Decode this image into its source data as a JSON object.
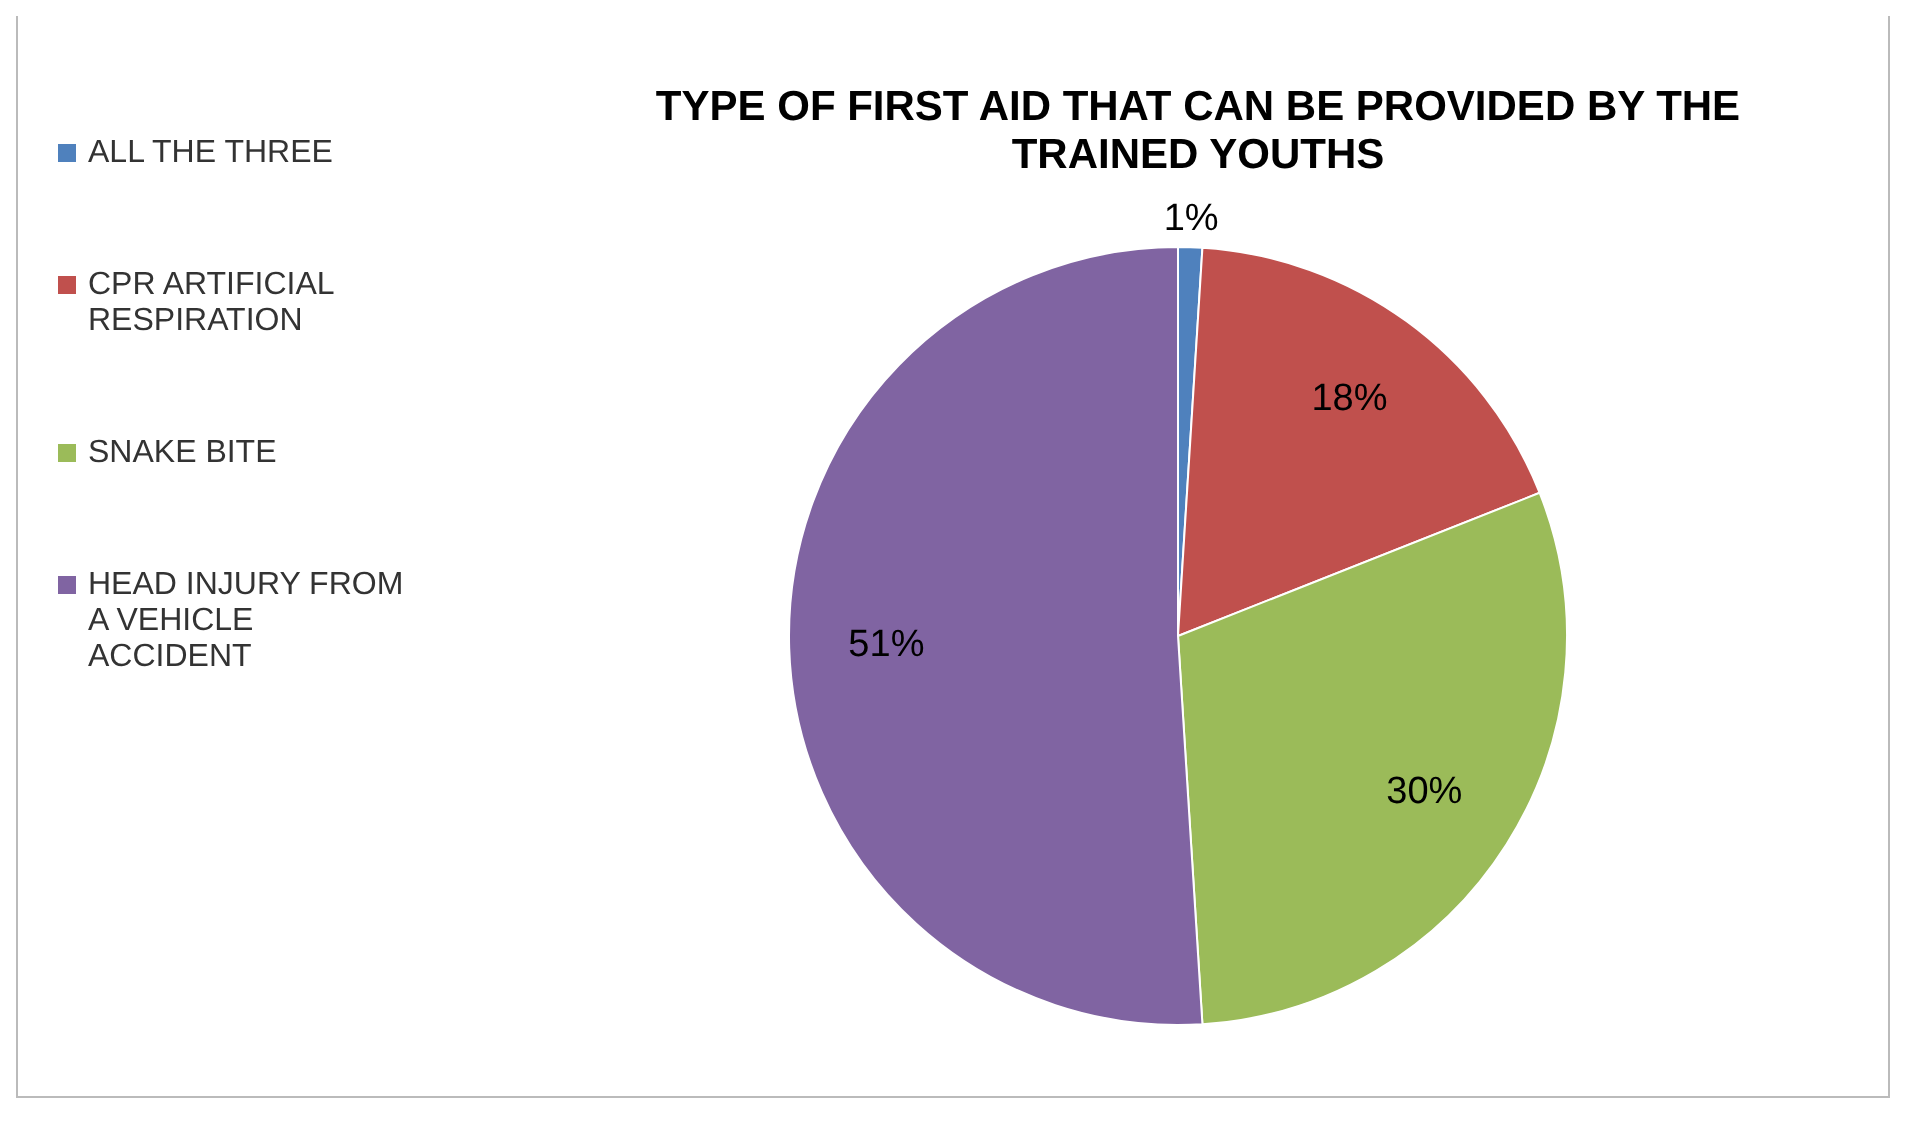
{
  "chart_data": {
    "type": "pie",
    "title": "TYPE OF FIRST AID THAT CAN BE PROVIDED BY THE TRAINED YOUTHS",
    "categories": [
      "ALL THE THREE",
      "CPR ARTIFICIAL RESPIRATION",
      "SNAKE BITE",
      "HEAD INJURY FROM A VEHICLE ACCIDENT"
    ],
    "values": [
      1,
      18,
      30,
      51
    ],
    "colors": [
      "#4f81bd",
      "#c0504d",
      "#9bbb59",
      "#8064a2"
    ],
    "value_labels": [
      "1%",
      "18%",
      "30%",
      "51%"
    ],
    "legend": "left"
  }
}
